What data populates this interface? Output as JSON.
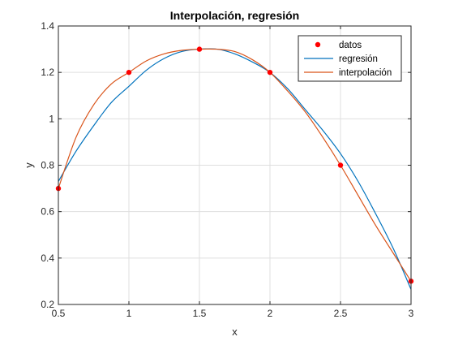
{
  "chart_data": {
    "type": "line",
    "title": "Interpolación, regresión",
    "xlabel": "x",
    "ylabel": "y",
    "xlim": [
      0.5,
      3
    ],
    "ylim": [
      0.2,
      1.4
    ],
    "xticks": [
      0.5,
      1,
      1.5,
      2,
      2.5,
      3
    ],
    "xtick_labels": [
      "0.5",
      "1",
      "1.5",
      "2",
      "2.5",
      "3"
    ],
    "yticks": [
      0.2,
      0.4,
      0.6,
      0.8,
      1.0,
      1.2,
      1.4
    ],
    "ytick_labels": [
      "0.2",
      "0.4",
      "0.6",
      "0.8",
      "1",
      "1.2",
      "1.4"
    ],
    "grid": true,
    "legend_position": "top-right",
    "series": [
      {
        "name": "datos",
        "kind": "markers",
        "color": "#ff0000",
        "x": [
          0.5,
          1,
          1.5,
          2,
          2.5,
          3
        ],
        "y": [
          0.7,
          1.2,
          1.3,
          1.2,
          0.8,
          0.3
        ]
      },
      {
        "name": "regresión",
        "kind": "line",
        "color": "#0072bd",
        "x": [
          0.5,
          0.625,
          0.75,
          0.875,
          1.0,
          1.125,
          1.25,
          1.375,
          1.5,
          1.625,
          1.75,
          1.875,
          2.0,
          2.125,
          2.25,
          2.375,
          2.5,
          2.625,
          2.75,
          2.875,
          3.0
        ],
        "y": [
          0.73,
          0.86,
          0.97,
          1.07,
          1.14,
          1.21,
          1.26,
          1.29,
          1.3,
          1.3,
          1.28,
          1.245,
          1.2,
          1.13,
          1.04,
          0.95,
          0.85,
          0.73,
          0.59,
          0.44,
          0.265
        ]
      },
      {
        "name": "interpolación",
        "kind": "line",
        "color": "#d95319",
        "x": [
          0.5,
          0.625,
          0.75,
          0.875,
          1.0,
          1.125,
          1.25,
          1.375,
          1.5,
          1.625,
          1.75,
          1.875,
          2.0,
          2.125,
          2.25,
          2.375,
          2.5,
          2.625,
          2.75,
          2.875,
          3.0
        ],
        "y": [
          0.7,
          0.92,
          1.06,
          1.15,
          1.2,
          1.25,
          1.28,
          1.295,
          1.3,
          1.3,
          1.29,
          1.255,
          1.2,
          1.12,
          1.03,
          0.92,
          0.8,
          0.67,
          0.54,
          0.42,
          0.3
        ]
      }
    ]
  }
}
